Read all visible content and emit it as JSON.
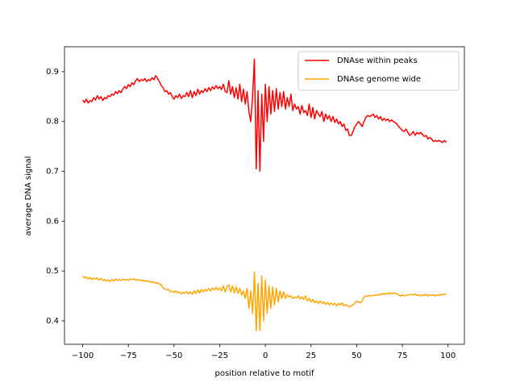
{
  "chart_data": {
    "type": "line",
    "xlabel": "position relative to motif",
    "ylabel": "average DNA signal",
    "x": [
      -100,
      -99,
      -98,
      -97,
      -96,
      -95,
      -94,
      -93,
      -92,
      -91,
      -90,
      -89,
      -88,
      -87,
      -86,
      -85,
      -84,
      -83,
      -82,
      -81,
      -80,
      -79,
      -78,
      -77,
      -76,
      -75,
      -74,
      -73,
      -72,
      -71,
      -70,
      -69,
      -68,
      -67,
      -66,
      -65,
      -64,
      -63,
      -62,
      -61,
      -60,
      -59,
      -58,
      -57,
      -56,
      -55,
      -54,
      -53,
      -52,
      -51,
      -50,
      -49,
      -48,
      -47,
      -46,
      -45,
      -44,
      -43,
      -42,
      -41,
      -40,
      -39,
      -38,
      -37,
      -36,
      -35,
      -34,
      -33,
      -32,
      -31,
      -30,
      -29,
      -28,
      -27,
      -26,
      -25,
      -24,
      -23,
      -22,
      -21,
      -20,
      -19,
      -18,
      -17,
      -16,
      -15,
      -14,
      -13,
      -12,
      -11,
      -10,
      -9,
      -8,
      -7,
      -6,
      -5,
      -4,
      -3,
      -2,
      -1,
      0,
      1,
      2,
      3,
      4,
      5,
      6,
      7,
      8,
      9,
      10,
      11,
      12,
      13,
      14,
      15,
      16,
      17,
      18,
      19,
      20,
      21,
      22,
      23,
      24,
      25,
      26,
      27,
      28,
      29,
      30,
      31,
      32,
      33,
      34,
      35,
      36,
      37,
      38,
      39,
      40,
      41,
      42,
      43,
      44,
      45,
      46,
      47,
      48,
      49,
      50,
      51,
      52,
      53,
      54,
      55,
      56,
      57,
      58,
      59,
      60,
      61,
      62,
      63,
      64,
      65,
      66,
      67,
      68,
      69,
      70,
      71,
      72,
      73,
      74,
      75,
      76,
      77,
      78,
      79,
      80,
      81,
      82,
      83,
      84,
      85,
      86,
      87,
      88,
      89,
      90,
      91,
      92,
      93,
      94,
      95,
      96,
      97,
      98,
      99
    ],
    "series": [
      {
        "name": "DNAse within peaks",
        "color": "#ff0000",
        "values": [
          0.843,
          0.838,
          0.845,
          0.837,
          0.842,
          0.84,
          0.848,
          0.843,
          0.852,
          0.845,
          0.85,
          0.842,
          0.848,
          0.846,
          0.852,
          0.85,
          0.855,
          0.853,
          0.86,
          0.856,
          0.862,
          0.858,
          0.865,
          0.87,
          0.866,
          0.874,
          0.87,
          0.878,
          0.874,
          0.882,
          0.886,
          0.88,
          0.884,
          0.882,
          0.886,
          0.88,
          0.884,
          0.882,
          0.888,
          0.884,
          0.892,
          0.886,
          0.88,
          0.872,
          0.868,
          0.86,
          0.862,
          0.855,
          0.858,
          0.85,
          0.845,
          0.852,
          0.848,
          0.855,
          0.846,
          0.852,
          0.85,
          0.858,
          0.85,
          0.862,
          0.848,
          0.86,
          0.852,
          0.865,
          0.855,
          0.862,
          0.858,
          0.866,
          0.86,
          0.868,
          0.862,
          0.87,
          0.865,
          0.872,
          0.866,
          0.87,
          0.864,
          0.875,
          0.86,
          0.858,
          0.882,
          0.855,
          0.87,
          0.848,
          0.868,
          0.845,
          0.875,
          0.84,
          0.865,
          0.835,
          0.86,
          0.82,
          0.8,
          0.85,
          0.925,
          0.705,
          0.862,
          0.7,
          0.855,
          0.76,
          0.875,
          0.8,
          0.87,
          0.815,
          0.862,
          0.82,
          0.866,
          0.825,
          0.858,
          0.83,
          0.86,
          0.825,
          0.848,
          0.83,
          0.855,
          0.822,
          0.835,
          0.825,
          0.83,
          0.815,
          0.832,
          0.818,
          0.822,
          0.812,
          0.835,
          0.808,
          0.828,
          0.805,
          0.822,
          0.815,
          0.81,
          0.82,
          0.8,
          0.815,
          0.805,
          0.812,
          0.8,
          0.81,
          0.798,
          0.805,
          0.795,
          0.8,
          0.79,
          0.795,
          0.782,
          0.785,
          0.772,
          0.772,
          0.78,
          0.79,
          0.795,
          0.8,
          0.795,
          0.79,
          0.8,
          0.808,
          0.812,
          0.81,
          0.812,
          0.815,
          0.808,
          0.812,
          0.805,
          0.81,
          0.802,
          0.806,
          0.802,
          0.805,
          0.8,
          0.803,
          0.8,
          0.798,
          0.795,
          0.79,
          0.786,
          0.782,
          0.78,
          0.785,
          0.778,
          0.772,
          0.775,
          0.78,
          0.772,
          0.778,
          0.775,
          0.778,
          0.774,
          0.77,
          0.772,
          0.765,
          0.768,
          0.765,
          0.76,
          0.762,
          0.76,
          0.762,
          0.76,
          0.758,
          0.762,
          0.758
        ]
      },
      {
        "name": "DNAse genome wide",
        "color": "#ffa500",
        "values": [
          0.49,
          0.486,
          0.488,
          0.484,
          0.487,
          0.483,
          0.486,
          0.484,
          0.486,
          0.482,
          0.485,
          0.481,
          0.483,
          0.48,
          0.482,
          0.479,
          0.483,
          0.48,
          0.484,
          0.481,
          0.483,
          0.481,
          0.484,
          0.482,
          0.483,
          0.481,
          0.484,
          0.483,
          0.484,
          0.482,
          0.483,
          0.481,
          0.482,
          0.48,
          0.481,
          0.479,
          0.48,
          0.478,
          0.478,
          0.477,
          0.476,
          0.476,
          0.474,
          0.472,
          0.466,
          0.464,
          0.462,
          0.463,
          0.458,
          0.46,
          0.457,
          0.46,
          0.456,
          0.458,
          0.454,
          0.457,
          0.455,
          0.459,
          0.454,
          0.458,
          0.453,
          0.46,
          0.455,
          0.462,
          0.456,
          0.463,
          0.458,
          0.463,
          0.46,
          0.465,
          0.46,
          0.466,
          0.462,
          0.467,
          0.462,
          0.466,
          0.46,
          0.47,
          0.458,
          0.468,
          0.472,
          0.458,
          0.47,
          0.456,
          0.468,
          0.455,
          0.465,
          0.452,
          0.46,
          0.445,
          0.465,
          0.425,
          0.46,
          0.415,
          0.498,
          0.38,
          0.475,
          0.38,
          0.49,
          0.4,
          0.482,
          0.415,
          0.47,
          0.425,
          0.468,
          0.432,
          0.465,
          0.438,
          0.46,
          0.445,
          0.458,
          0.445,
          0.452,
          0.448,
          0.45,
          0.445,
          0.448,
          0.446,
          0.45,
          0.444,
          0.448,
          0.443,
          0.45,
          0.44,
          0.445,
          0.438,
          0.443,
          0.436,
          0.44,
          0.435,
          0.44,
          0.435,
          0.438,
          0.433,
          0.437,
          0.432,
          0.436,
          0.432,
          0.435,
          0.43,
          0.435,
          0.432,
          0.436,
          0.43,
          0.433,
          0.43,
          0.428,
          0.43,
          0.432,
          0.436,
          0.44,
          0.438,
          0.436,
          0.44,
          0.448,
          0.45,
          0.449,
          0.451,
          0.45,
          0.451,
          0.452,
          0.451,
          0.453,
          0.452,
          0.455,
          0.453,
          0.455,
          0.454,
          0.456,
          0.455,
          0.455,
          0.456,
          0.454,
          0.452,
          0.45,
          0.452,
          0.45,
          0.451,
          0.452,
          0.452,
          0.453,
          0.452,
          0.454,
          0.451,
          0.452,
          0.45,
          0.452,
          0.451,
          0.453,
          0.45,
          0.452,
          0.451,
          0.452,
          0.45,
          0.452,
          0.451,
          0.453,
          0.452,
          0.454,
          0.453
        ]
      }
    ],
    "xlim": [
      -109.95,
      108.95
    ],
    "ylim": [
      0.353,
      0.95
    ],
    "xticks": [
      {
        "value": -100,
        "label": "−100"
      },
      {
        "value": -75,
        "label": "−75"
      },
      {
        "value": -50,
        "label": "−50"
      },
      {
        "value": -25,
        "label": "−25"
      },
      0,
      25,
      50,
      75,
      100
    ],
    "yticks": [
      0.4,
      0.5,
      0.6,
      0.7,
      0.8,
      0.9
    ],
    "legend": "upper right",
    "grid": false
  }
}
